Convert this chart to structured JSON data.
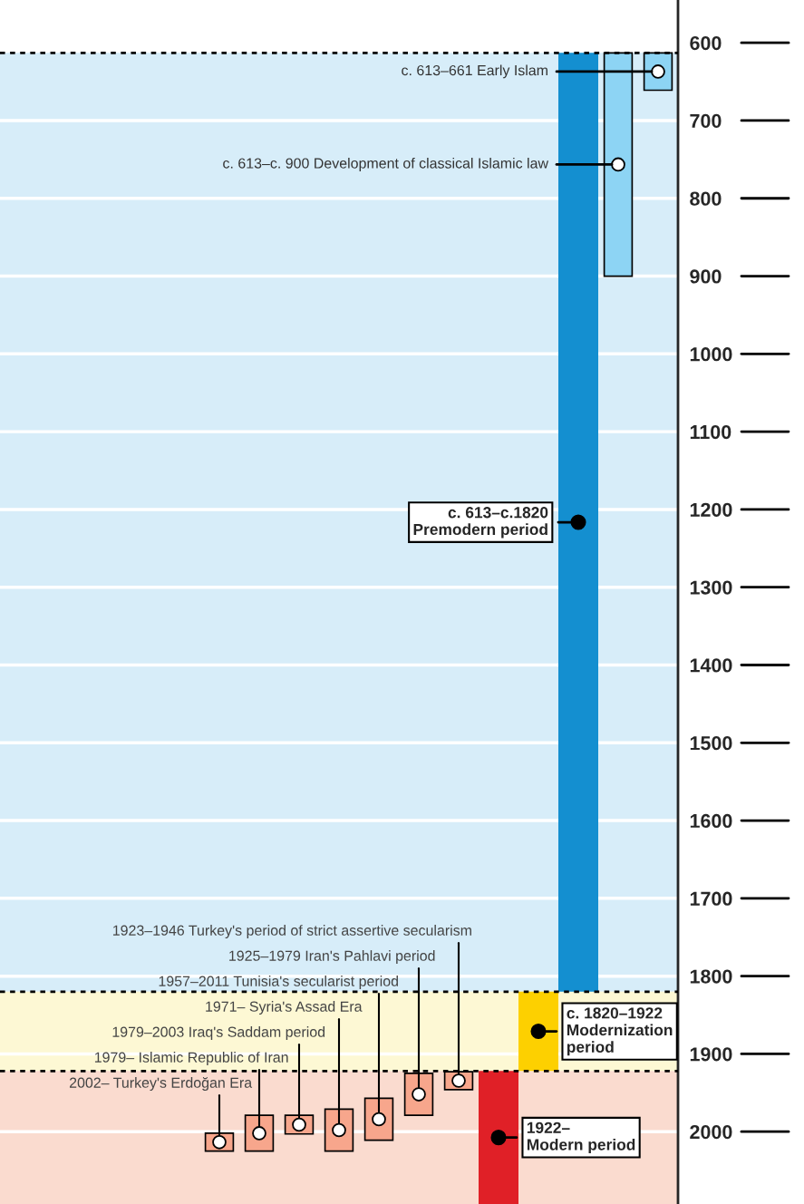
{
  "chart_data": {
    "type": "bar",
    "categories": [
      null,
      null,
      null,
      null,
      null,
      null,
      null,
      null,
      null,
      null,
      null,
      null,
      null,
      null,
      null,
      null,
      null
    ],
    "base": [
      null,
      null,
      null,
      null,
      null,
      2002,
      1979,
      1979,
      1971,
      1957,
      1925,
      1923,
      1922,
      1820,
      613,
      613,
      613
    ],
    "values": [
      null,
      null,
      null,
      null,
      null,
      23,
      46,
      24,
      54,
      54,
      54,
      23,
      171,
      102,
      1207,
      287,
      48
    ],
    "colors": [
      null,
      null,
      null,
      null,
      null,
      "#f7a68c",
      "#f7a68c",
      "#f7a68c",
      "#f7a68c",
      "#f7a68c",
      "#f7a68c",
      "#f7a68c",
      "#e02027",
      "#fdd000",
      "#148fd0",
      "#8dd4f4",
      "#8dd4f4"
    ],
    "ylim": [
      2093,
      545
    ],
    "yticks": [
      600,
      700,
      800,
      900,
      1000,
      1100,
      1200,
      1300,
      1400,
      1500,
      1600,
      1700,
      1800,
      1900,
      2000
    ],
    "grid": "y",
    "bands": [
      {
        "axis": "y",
        "from": 613,
        "to": 1820,
        "color": "#d7edf9"
      },
      {
        "axis": "y",
        "from": 1820,
        "to": 1922,
        "color": "#fdf8d4"
      },
      {
        "axis": "y",
        "from": 1922,
        "to": 2093,
        "color": "#fadbcf"
      }
    ],
    "ref_lines": [
      {
        "axis": "y",
        "value": 613,
        "color": "#000000",
        "line_style": "dotted"
      },
      {
        "axis": "y",
        "value": 1820,
        "color": "#000000",
        "line_style": "dotted"
      },
      {
        "axis": "y",
        "value": 1922,
        "color": "#000000",
        "line_style": "dotted"
      }
    ],
    "annotations": [
      "2002– Turkey's Erdoğan Era",
      "1979– Islamic Republic of Iran",
      "1979–2003 Iraq's Saddam period",
      "1971– Syria's Assad Era",
      "1957–2011 Tunisia's secularist period",
      "1925–1979 Iran's Pahlavi period",
      "1923–1946 Turkey's period of strict assertive secularism",
      "1922–\nModern period",
      "c. 1820–1922\nModernization\nperiod",
      "c. 613–c.1820\nPremodern period",
      "c. 613–c. 900 Development of classical Islamic law",
      "c. 613–661 Early Islam"
    ]
  }
}
